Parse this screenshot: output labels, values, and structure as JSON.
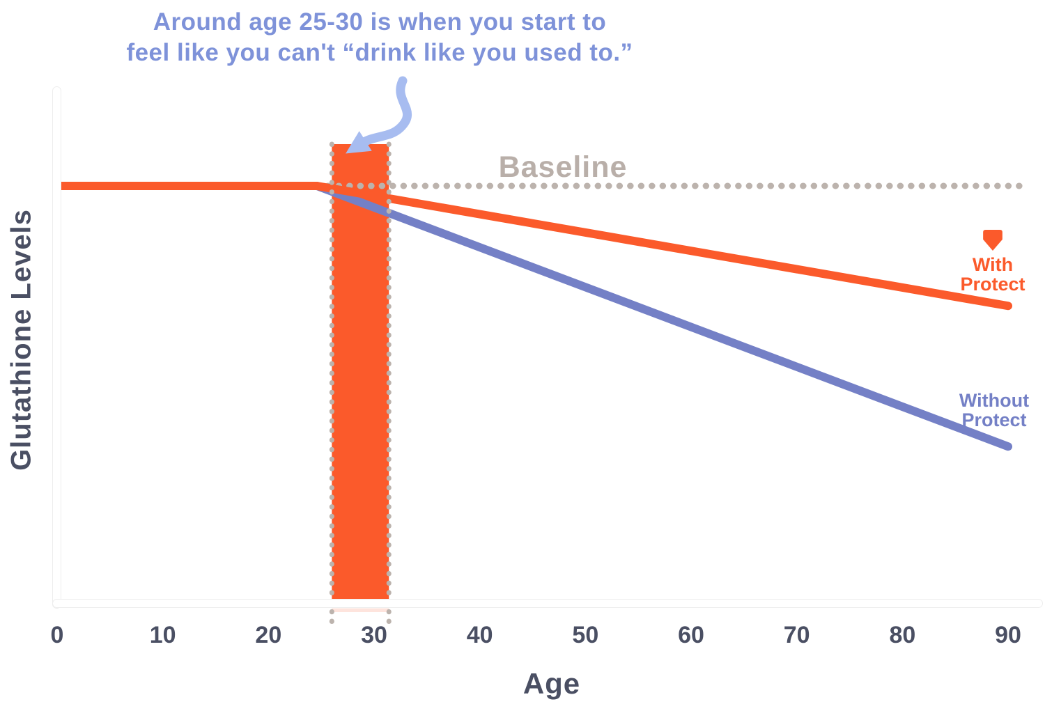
{
  "annotation": {
    "line1": "Around age 25-30 is when you start to",
    "line2": "feel like you can't “drink like you used to.”"
  },
  "labels": {
    "with_line1": "With",
    "with_line2": "Protect",
    "without_line1": "Without",
    "without_line2": "Protect"
  },
  "colors": {
    "orange": "#FB5A2B",
    "blue": "#7480C6",
    "annotation_text": "#7E92D9",
    "arrow": "#A7BCF0",
    "dots": "#BCB3AD",
    "baseline_label": "#B9AFA9",
    "axis_text": "#4A4F63",
    "axis_bar": "#FFFFFF"
  },
  "chart_data": {
    "type": "line",
    "title": "",
    "xlabel": "Age",
    "ylabel": "Glutathione Levels",
    "x_ticks": [
      0,
      10,
      20,
      30,
      40,
      50,
      60,
      70,
      80,
      90
    ],
    "xlim": [
      0,
      93
    ],
    "ylim": [
      0,
      115
    ],
    "grid": false,
    "legend_position": "inline-right",
    "baseline": {
      "label": "Baseline",
      "value": 100,
      "x_range": [
        24.6,
        92
      ],
      "style": "dotted"
    },
    "highlight_band": {
      "x1": 26,
      "x2": 31.4,
      "note": "Around age 25-30 is when you start to feel like you can't “drink like you used to.”"
    },
    "series": [
      {
        "name": "With Protect",
        "color": "#FB5A2B",
        "points": [
          [
            0,
            100
          ],
          [
            24.6,
            100
          ],
          [
            90,
            71
          ]
        ]
      },
      {
        "name": "Without Protect",
        "color": "#7480C6",
        "points": [
          [
            0,
            100
          ],
          [
            24.6,
            100
          ],
          [
            90,
            37
          ]
        ]
      }
    ]
  }
}
